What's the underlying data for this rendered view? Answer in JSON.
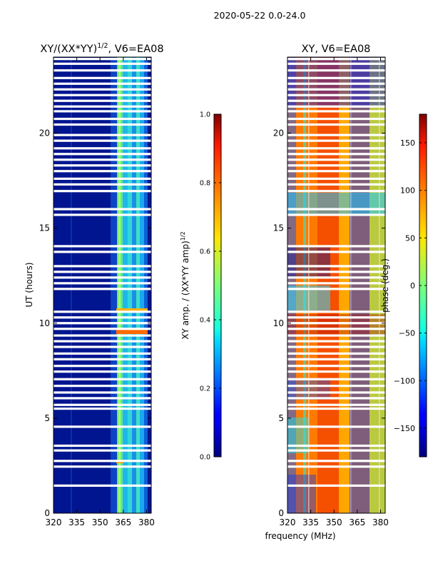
{
  "suptitle": "2020-05-22 0.0-24.0",
  "colors": {
    "background": "#ffffff",
    "flag_gap": "#ffffff",
    "axis": "#000000"
  },
  "chart_data": [
    {
      "type": "heatmap",
      "title": "XY/(XX*YY)^{1/2}, V6=EA08",
      "title_main": "XY/(XX*YY)",
      "title_sup": "1/2",
      "title_tail": ", V6=EA08",
      "xlabel": "",
      "ylabel": "UT (hours)",
      "xlim": [
        320,
        383
      ],
      "ylim": [
        0,
        24
      ],
      "xticks": [
        320,
        335,
        350,
        365,
        380
      ],
      "yticks": [
        0,
        5,
        10,
        15,
        20
      ],
      "colormap": "jet",
      "colorbar": {
        "label": "XY amp. / (XX*YY amp)^{1/2}",
        "label_main": "XY amp. / (XX*YY amp)",
        "label_sup": "1/2",
        "range": [
          0.0,
          1.0
        ],
        "ticks": [
          "0.0",
          "0.2",
          "0.4",
          "0.6",
          "0.8",
          "1.0"
        ],
        "tick_values": [
          0.0,
          0.2,
          0.4,
          0.6,
          0.8,
          1.0
        ]
      }
    },
    {
      "type": "heatmap",
      "title": "XY, V6=EA08",
      "xlabel": "frequency (MHz)",
      "ylabel": "",
      "xlim": [
        320,
        383
      ],
      "ylim": [
        0,
        24
      ],
      "xticks": [
        320,
        335,
        350,
        365,
        380
      ],
      "yticks": [
        0,
        5,
        10,
        15,
        20
      ],
      "colormap": "jet",
      "colorbar": {
        "label": "phase (deg.)",
        "range": [
          -180,
          180
        ],
        "ticks": [
          "150",
          "100",
          "50",
          "0",
          "−50",
          "−100",
          "−150"
        ],
        "tick_values": [
          150,
          100,
          50,
          0,
          -50,
          -100,
          -150
        ]
      }
    }
  ],
  "flagged_ut_hours": [
    23.9,
    23.65,
    23.3,
    22.9,
    22.6,
    22.3,
    22.0,
    21.7,
    21.4,
    21.15,
    20.75,
    20.45,
    19.9,
    19.6,
    19.2,
    18.9,
    18.6,
    18.3,
    18.0,
    17.6,
    17.3,
    16.95,
    16.0,
    15.7,
    14.05,
    13.75,
    13.0,
    12.7,
    12.4,
    12.1,
    11.8,
    10.6,
    10.3,
    10.0,
    9.7,
    9.35,
    9.05,
    8.75,
    8.4,
    8.1,
    7.75,
    7.45,
    7.05,
    6.7,
    6.35,
    6.05,
    5.7,
    5.5,
    4.55,
    3.55,
    3.3,
    2.75,
    2.45,
    1.45
  ]
}
